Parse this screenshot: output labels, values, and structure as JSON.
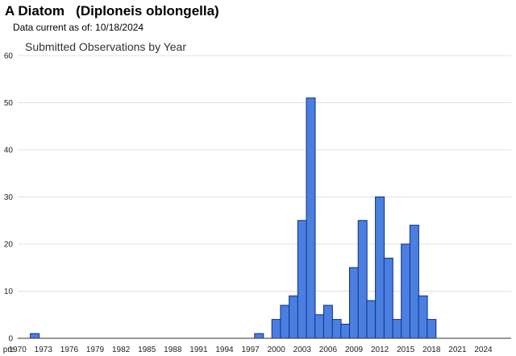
{
  "header": {
    "species_title": "A Diatom   (Diploneis oblongella)",
    "data_current": "Data current as of: 10/18/2024"
  },
  "chart_data": {
    "type": "bar",
    "title": "Submitted Observations by Year",
    "xlabel": "",
    "ylabel": "",
    "ylim": [
      0,
      60
    ],
    "yticks": [
      0,
      10,
      20,
      30,
      40,
      50,
      60
    ],
    "x_tick_labels": [
      "pre",
      "1970",
      "1973",
      "1976",
      "1979",
      "1982",
      "1985",
      "1988",
      "1991",
      "1994",
      "1997",
      "2000",
      "2003",
      "2006",
      "2009",
      "2012",
      "2015",
      "2018",
      "2021",
      "2024"
    ],
    "grid": true,
    "bar_color": "#4a7fe0",
    "bar_edge_color": "#0d2f8a",
    "categories": [
      "pre",
      "1970",
      "1971",
      "1972",
      "1973",
      "1974",
      "1975",
      "1976",
      "1977",
      "1978",
      "1979",
      "1980",
      "1981",
      "1982",
      "1983",
      "1984",
      "1985",
      "1986",
      "1987",
      "1988",
      "1989",
      "1990",
      "1991",
      "1992",
      "1993",
      "1994",
      "1995",
      "1996",
      "1997",
      "1998",
      "1999",
      "2000",
      "2001",
      "2002",
      "2003",
      "2004",
      "2005",
      "2006",
      "2007",
      "2008",
      "2009",
      "2010",
      "2011",
      "2012",
      "2013",
      "2014",
      "2015",
      "2016",
      "2017",
      "2018",
      "2019",
      "2020",
      "2021",
      "2022",
      "2023",
      "2024"
    ],
    "values": [
      0,
      0,
      0,
      1,
      0,
      0,
      0,
      0,
      0,
      0,
      0,
      0,
      0,
      0,
      0,
      0,
      0,
      0,
      0,
      0,
      0,
      0,
      0,
      0,
      0,
      0,
      0,
      0,
      0,
      1,
      0,
      4,
      7,
      9,
      25,
      51,
      5,
      7,
      4,
      3,
      15,
      25,
      8,
      30,
      17,
      4,
      20,
      24,
      9,
      4,
      0,
      0,
      0,
      0,
      0,
      0
    ]
  }
}
